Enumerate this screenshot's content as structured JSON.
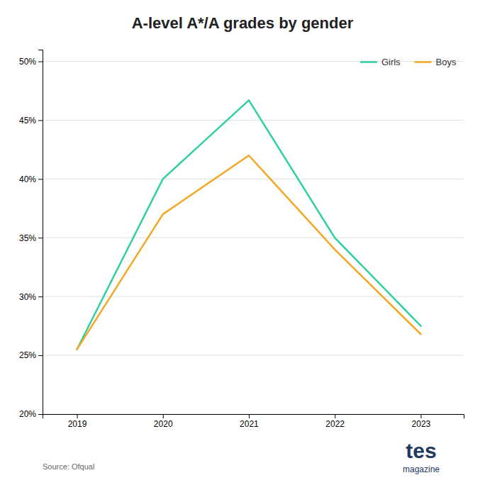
{
  "chart_data": {
    "type": "line",
    "title": "A-level A*/A grades by gender",
    "x": [
      2019,
      2020,
      2021,
      2022,
      2023
    ],
    "series": [
      {
        "name": "Girls",
        "color": "#2ecfa3",
        "values": [
          0.255,
          0.4,
          0.467,
          0.35,
          0.275
        ]
      },
      {
        "name": "Boys",
        "color": "#f5a623",
        "values": [
          0.255,
          0.37,
          0.42,
          0.34,
          0.268
        ]
      }
    ],
    "xlim": [
      2018.6,
      2023.5
    ],
    "xticks": [
      2019,
      2020,
      2021,
      2022,
      2023
    ],
    "ylim": [
      0.2,
      0.51
    ],
    "yticks": [
      {
        "value": 0.2,
        "label": "20%"
      },
      {
        "value": 0.25,
        "label": "25%"
      },
      {
        "value": 0.3,
        "label": "30%"
      },
      {
        "value": 0.35,
        "label": "35%"
      },
      {
        "value": 0.4,
        "label": "40%"
      },
      {
        "value": 0.45,
        "label": "45%"
      },
      {
        "value": 0.5,
        "label": "50%"
      }
    ],
    "grid": true,
    "legend": "upper right",
    "annotations": [
      "Source: Ofqual",
      "tes",
      "magazine"
    ]
  }
}
